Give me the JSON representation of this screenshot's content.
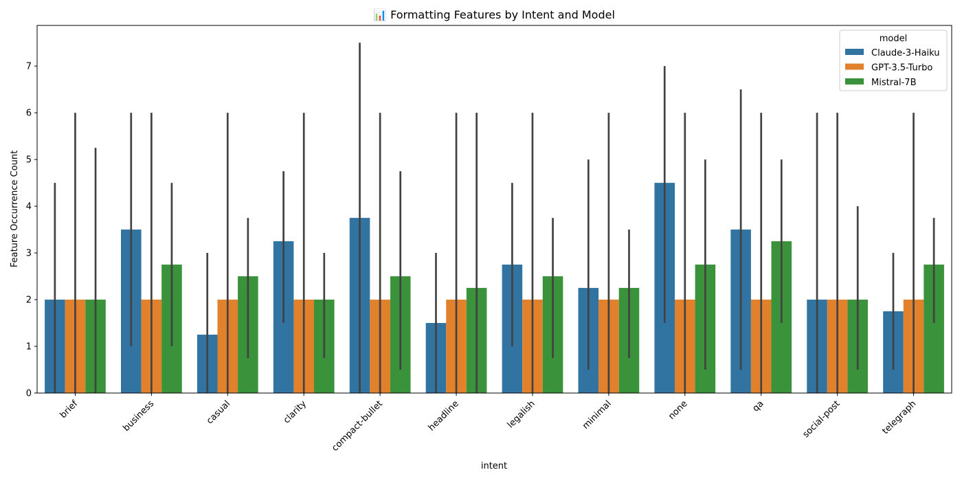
{
  "chart_data": {
    "type": "bar",
    "title": "📊 Formatting Features by Intent and Model",
    "xlabel": "intent",
    "ylabel": "Feature Occurrence Count",
    "ylim": [
      0,
      7.87
    ],
    "yticks": [
      0,
      1,
      2,
      3,
      4,
      5,
      6,
      7
    ],
    "grid": false,
    "legend": {
      "title": "model",
      "placement": "top-right"
    },
    "categories": [
      "brief",
      "business",
      "casual",
      "clarity",
      "compact-bullet",
      "headline",
      "legalish",
      "minimal",
      "none",
      "qa",
      "social-post",
      "telegraph"
    ],
    "series": [
      {
        "name": "Claude-3-Haiku",
        "color": "#3274a1",
        "values": [
          2.0,
          3.5,
          1.25,
          3.25,
          3.75,
          1.5,
          2.75,
          2.25,
          4.5,
          3.5,
          2.0,
          1.75
        ],
        "ci_low": [
          0.0,
          1.0,
          0.0,
          1.5,
          0.0,
          0.0,
          1.0,
          0.5,
          1.5,
          0.5,
          0.0,
          0.5
        ],
        "ci_high": [
          4.5,
          6.0,
          3.0,
          4.75,
          7.5,
          3.0,
          4.5,
          5.0,
          7.0,
          6.5,
          6.0,
          3.0
        ]
      },
      {
        "name": "GPT-3.5-Turbo",
        "color": "#e1812c",
        "values": [
          2.0,
          2.0,
          2.0,
          2.0,
          2.0,
          2.0,
          2.0,
          2.0,
          2.0,
          2.0,
          2.0,
          2.0
        ],
        "ci_low": [
          0.0,
          0.0,
          0.0,
          0.0,
          0.0,
          0.0,
          0.0,
          0.0,
          0.0,
          0.0,
          0.0,
          0.0
        ],
        "ci_high": [
          6.0,
          6.0,
          6.0,
          6.0,
          6.0,
          6.0,
          6.0,
          6.0,
          6.0,
          6.0,
          6.0,
          6.0
        ]
      },
      {
        "name": "Mistral-7B",
        "color": "#3a923a",
        "values": [
          2.0,
          2.75,
          2.5,
          2.0,
          2.5,
          2.25,
          2.5,
          2.25,
          2.75,
          3.25,
          2.0,
          2.75
        ],
        "ci_low": [
          0.0,
          1.0,
          0.75,
          0.75,
          0.5,
          0.0,
          0.75,
          0.75,
          0.5,
          1.5,
          0.5,
          1.5
        ],
        "ci_high": [
          5.25,
          4.5,
          3.75,
          3.0,
          4.75,
          6.0,
          3.75,
          3.5,
          5.0,
          5.0,
          4.0,
          3.75
        ]
      }
    ]
  }
}
